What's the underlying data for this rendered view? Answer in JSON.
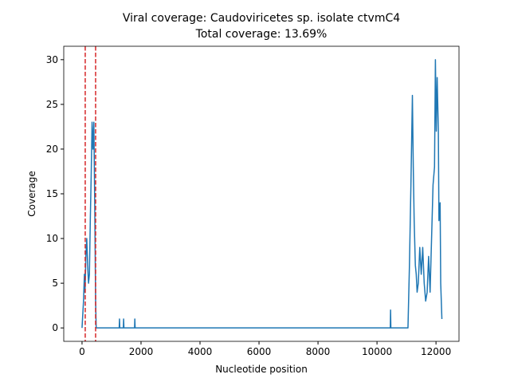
{
  "chart_data": {
    "type": "line",
    "title": [
      "Viral coverage: Caudoviricetes sp. isolate ctvmC4",
      "Total coverage: 13.69%"
    ],
    "xlabel": "Nucleotide position",
    "ylabel": "Coverage",
    "x": [
      0,
      50,
      80,
      100,
      130,
      160,
      190,
      220,
      250,
      280,
      310,
      340,
      370,
      400,
      430,
      460,
      480,
      1260,
      1270,
      1280,
      1400,
      1410,
      1420,
      1780,
      1790,
      1800,
      10450,
      10460,
      10470,
      11050,
      11100,
      11150,
      11200,
      11230,
      11260,
      11300,
      11330,
      11360,
      11400,
      11450,
      11500,
      11550,
      11600,
      11650,
      11700,
      11750,
      11800,
      11850,
      11900,
      11950,
      11980,
      12010,
      12040,
      12080,
      12100,
      12140,
      12160,
      12200
    ],
    "series": [
      {
        "name": "Coverage",
        "color": "#1f77b4",
        "values": [
          0,
          3,
          6,
          4,
          8,
          10,
          7,
          5,
          6,
          12,
          17,
          23,
          20,
          23,
          14,
          3,
          0,
          0,
          1,
          0,
          0,
          1,
          0,
          0,
          1,
          0,
          0,
          2,
          0,
          0,
          7,
          16,
          26,
          18,
          12,
          7,
          6,
          4,
          5,
          9,
          6,
          9,
          5,
          3,
          4,
          8,
          4,
          10,
          16,
          18,
          30,
          22,
          28,
          22,
          12,
          14,
          5,
          1
        ]
      }
    ],
    "vlines": [
      108,
      460
    ],
    "vline_color": "#d62728",
    "xlim": [
      -620,
      12780
    ],
    "ylim": [
      -1.5,
      31.5
    ],
    "xticks": [
      0,
      2000,
      4000,
      6000,
      8000,
      10000,
      12000
    ],
    "yticks": [
      0,
      5,
      10,
      15,
      20,
      25,
      30
    ]
  }
}
